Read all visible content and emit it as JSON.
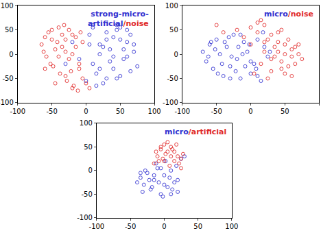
{
  "chart_data": [
    {
      "type": "scatter",
      "title": [
        [
          {
            "text": "strong-micro-",
            "color": "#3030d0"
          }
        ],
        [
          {
            "text": "artificial",
            "color": "#3030d0"
          },
          {
            "text": "/noise",
            "color": "#e02828"
          }
        ]
      ],
      "xlim": [
        -100,
        100
      ],
      "xticks": [
        -100,
        -50,
        0,
        50,
        100
      ],
      "ylim": [
        -100,
        100
      ],
      "yticks": [
        -100,
        -50,
        0,
        50,
        100
      ],
      "grid": false,
      "marker": "circle-open",
      "series": [
        {
          "name": "strong-micro-artificial",
          "color": "#3030d0",
          "x": [
            5,
            10,
            15,
            20,
            25,
            30,
            35,
            40,
            45,
            50,
            55,
            60,
            65,
            70,
            75,
            10,
            20,
            30,
            40,
            50,
            60,
            70,
            15,
            25,
            35,
            45,
            55,
            65,
            5,
            0,
            -10,
            -20,
            40,
            50,
            30,
            20,
            60,
            45,
            -30,
            10
          ],
          "y": [
            40,
            55,
            -40,
            20,
            -60,
            45,
            10,
            -30,
            50,
            30,
            -10,
            25,
            40,
            5,
            -25,
            -20,
            0,
            -50,
            35,
            -45,
            -5,
            20,
            -65,
            15,
            -15,
            60,
            10,
            -35,
            20,
            -55,
            -10,
            25,
            -5,
            55,
            30,
            -30,
            50,
            -50,
            -20,
            60
          ]
        },
        {
          "name": "noise",
          "color": "#e02828",
          "x": [
            -65,
            -60,
            -55,
            -50,
            -45,
            -40,
            -35,
            -30,
            -25,
            -20,
            -15,
            -10,
            -5,
            0,
            5,
            -58,
            -48,
            -38,
            -28,
            -18,
            -8,
            -62,
            -52,
            -42,
            -32,
            -22,
            -12,
            -45,
            -35,
            -25,
            -15,
            -5,
            -40,
            -30,
            -20,
            -50,
            -30,
            -10,
            -60,
            -20
          ],
          "y": [
            20,
            35,
            45,
            50,
            10,
            55,
            40,
            30,
            -10,
            0,
            15,
            -30,
            -50,
            -60,
            -70,
            -5,
            -25,
            -40,
            -55,
            -65,
            45,
            5,
            -20,
            25,
            60,
            -35,
            -75,
            -60,
            15,
            50,
            35,
            25,
            -5,
            -45,
            -70,
            30,
            5,
            -20,
            -30,
            40
          ]
        }
      ]
    },
    {
      "type": "scatter",
      "title": [
        [
          {
            "text": "micro",
            "color": "#3030d0"
          },
          {
            "text": "/noise",
            "color": "#e02828"
          }
        ]
      ],
      "xlim": [
        -100,
        100
      ],
      "xticks": [
        -100,
        -50,
        0,
        50,
        100
      ],
      "ylim": [
        -100,
        100
      ],
      "yticks": [
        -100,
        -50,
        0,
        50,
        100
      ],
      "grid": false,
      "marker": "circle-open",
      "series": [
        {
          "name": "micro",
          "color": "#3030d0",
          "x": [
            -70,
            -65,
            -60,
            -55,
            -50,
            -45,
            -40,
            -35,
            -30,
            -25,
            -20,
            -15,
            -10,
            -5,
            0,
            5,
            10,
            15,
            20,
            25,
            -62,
            -52,
            -42,
            -32,
            -22,
            -12,
            -2,
            8,
            18,
            28,
            -48,
            -38,
            -28,
            -18,
            -8,
            -58,
            -30,
            -15,
            0,
            10
          ],
          "y": [
            5,
            -15,
            20,
            -30,
            30,
            0,
            -45,
            15,
            -25,
            40,
            -10,
            -50,
            25,
            5,
            -40,
            -20,
            30,
            -55,
            15,
            -5,
            -5,
            10,
            -20,
            35,
            -35,
            0,
            20,
            -30,
            45,
            5,
            -40,
            25,
            -5,
            15,
            -25,
            25,
            -50,
            40,
            -15,
            -45
          ]
        },
        {
          "name": "noise",
          "color": "#e02828",
          "x": [
            0,
            10,
            20,
            30,
            40,
            50,
            60,
            70,
            75,
            15,
            25,
            35,
            45,
            55,
            65,
            5,
            20,
            30,
            40,
            50,
            60,
            70,
            25,
            35,
            45,
            55,
            65,
            10,
            0,
            -10,
            -20,
            -40,
            -50,
            30,
            40,
            50,
            60,
            20,
            45,
            15
          ],
          "y": [
            55,
            45,
            60,
            40,
            25,
            20,
            10,
            0,
            -10,
            -20,
            30,
            -5,
            -30,
            -25,
            15,
            -40,
            5,
            -35,
            45,
            0,
            -45,
            20,
            -50,
            15,
            -15,
            30,
            -20,
            65,
            20,
            35,
            50,
            45,
            60,
            -10,
            5,
            -40,
            -5,
            25,
            50,
            70
          ]
        }
      ]
    },
    {
      "type": "scatter",
      "title": [
        [
          {
            "text": "micro",
            "color": "#3030d0"
          },
          {
            "text": "/artificial",
            "color": "#e02828"
          }
        ]
      ],
      "xlim": [
        -100,
        100
      ],
      "xticks": [
        -100,
        -50,
        0,
        50,
        100
      ],
      "ylim": [
        -100,
        100
      ],
      "yticks": [
        -100,
        -50,
        0,
        50,
        100
      ],
      "grid": false,
      "marker": "circle-open",
      "series": [
        {
          "name": "micro",
          "color": "#3030d0",
          "x": [
            -40,
            -35,
            -30,
            -25,
            -20,
            -15,
            -10,
            -5,
            0,
            5,
            10,
            15,
            20,
            25,
            30,
            -32,
            -22,
            -12,
            -2,
            8,
            18,
            -28,
            -18,
            -8,
            2,
            12,
            -15,
            0,
            -35,
            -5,
            20,
            10
          ],
          "y": [
            -25,
            -15,
            -30,
            -5,
            -40,
            -20,
            5,
            -50,
            -10,
            -35,
            0,
            -25,
            -45,
            25,
            30,
            -45,
            -20,
            15,
            -55,
            -15,
            10,
            0,
            -35,
            -25,
            20,
            -40,
            -10,
            -30,
            -5,
            5,
            -20,
            -50
          ]
        },
        {
          "name": "artificial",
          "color": "#e02828",
          "x": [
            -15,
            -10,
            -5,
            0,
            5,
            10,
            15,
            20,
            25,
            -8,
            2,
            12,
            22,
            -12,
            -2,
            8,
            18,
            0,
            10,
            5,
            25,
            -5,
            15,
            28
          ],
          "y": [
            15,
            30,
            45,
            55,
            60,
            50,
            40,
            30,
            25,
            20,
            35,
            45,
            15,
            40,
            25,
            10,
            55,
            20,
            30,
            40,
            5,
            50,
            20,
            35
          ]
        }
      ]
    }
  ]
}
